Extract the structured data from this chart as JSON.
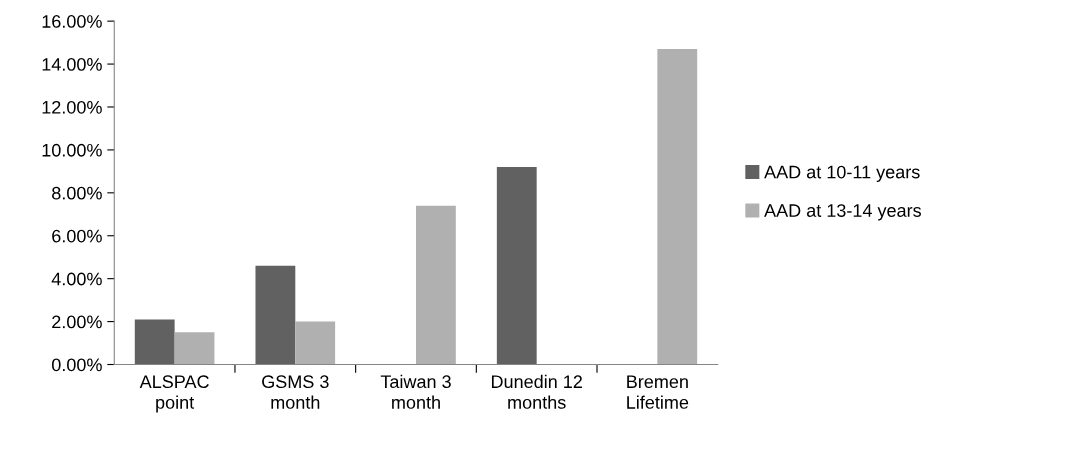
{
  "chart_data": {
    "type": "bar",
    "categories": [
      "ALSPAC\npoint",
      "GSMS 3\nmonth",
      "Taiwan 3\nmonth",
      "Dunedin 12\nmonths",
      "Bremen\nLifetime"
    ],
    "series": [
      {
        "name": "AAD at 10-11 years",
        "color": "#616161",
        "values": [
          2.1,
          4.6,
          null,
          9.2,
          null
        ]
      },
      {
        "name": "AAD at 13-14 years",
        "color": "#b0b0b0",
        "values": [
          1.5,
          2.0,
          7.4,
          null,
          14.7
        ]
      }
    ],
    "ylim": [
      0,
      16
    ],
    "yticks": [
      {
        "value": 0,
        "label": "0.00%"
      },
      {
        "value": 2,
        "label": "2.00%"
      },
      {
        "value": 4,
        "label": "4.00%"
      },
      {
        "value": 6,
        "label": "6.00%"
      },
      {
        "value": 8,
        "label": "8.00%"
      },
      {
        "value": 10,
        "label": "10.00%"
      },
      {
        "value": 12,
        "label": "12.00%"
      },
      {
        "value": 14,
        "label": "14.00%"
      },
      {
        "value": 16,
        "label": "16.00%"
      }
    ],
    "grid": false,
    "legend": "right"
  }
}
